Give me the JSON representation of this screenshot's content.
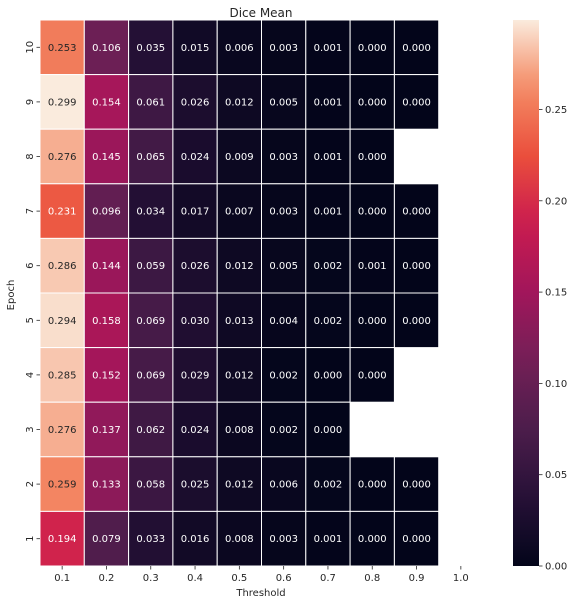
{
  "chart_data": {
    "type": "heatmap",
    "title": "Dice Mean",
    "xlabel": "Threshold",
    "ylabel": "Epoch",
    "x_ticks": [
      "0.1",
      "0.2",
      "0.3",
      "0.4",
      "0.5",
      "0.6",
      "0.7",
      "0.8",
      "0.9",
      "1.0"
    ],
    "y_ticks": [
      "10",
      "9",
      "8",
      "7",
      "6",
      "5",
      "4",
      "3",
      "2",
      "1"
    ],
    "values": [
      [
        0.253,
        0.106,
        0.035,
        0.015,
        0.006,
        0.003,
        0.001,
        0.0,
        0.0,
        null
      ],
      [
        0.299,
        0.154,
        0.061,
        0.026,
        0.012,
        0.005,
        0.001,
        0.0,
        0.0,
        null
      ],
      [
        0.276,
        0.145,
        0.065,
        0.024,
        0.009,
        0.003,
        0.001,
        0.0,
        null,
        null
      ],
      [
        0.231,
        0.096,
        0.034,
        0.017,
        0.007,
        0.003,
        0.001,
        0.0,
        0.0,
        null
      ],
      [
        0.286,
        0.144,
        0.059,
        0.026,
        0.012,
        0.005,
        0.002,
        0.001,
        0.0,
        null
      ],
      [
        0.294,
        0.158,
        0.069,
        0.03,
        0.013,
        0.004,
        0.002,
        0.0,
        0.0,
        null
      ],
      [
        0.285,
        0.152,
        0.069,
        0.029,
        0.012,
        0.002,
        0.0,
        0.0,
        null,
        null
      ],
      [
        0.276,
        0.137,
        0.062,
        0.024,
        0.008,
        0.002,
        0.0,
        null,
        null,
        null
      ],
      [
        0.259,
        0.133,
        0.058,
        0.025,
        0.012,
        0.006,
        0.002,
        0.0,
        0.0,
        null
      ],
      [
        0.194,
        0.079,
        0.033,
        0.016,
        0.008,
        0.003,
        0.001,
        0.0,
        0.0,
        null
      ]
    ],
    "colorbar": {
      "colormap": "rocket",
      "vmin": 0.0,
      "vmax": 0.299,
      "ticks": [
        "0.00",
        "0.05",
        "0.10",
        "0.15",
        "0.20",
        "0.25"
      ],
      "tick_values": [
        0.0,
        0.05,
        0.1,
        0.15,
        0.2,
        0.25
      ]
    },
    "cell_separator_color": "#ffffff",
    "background_color": "#ffffff"
  }
}
